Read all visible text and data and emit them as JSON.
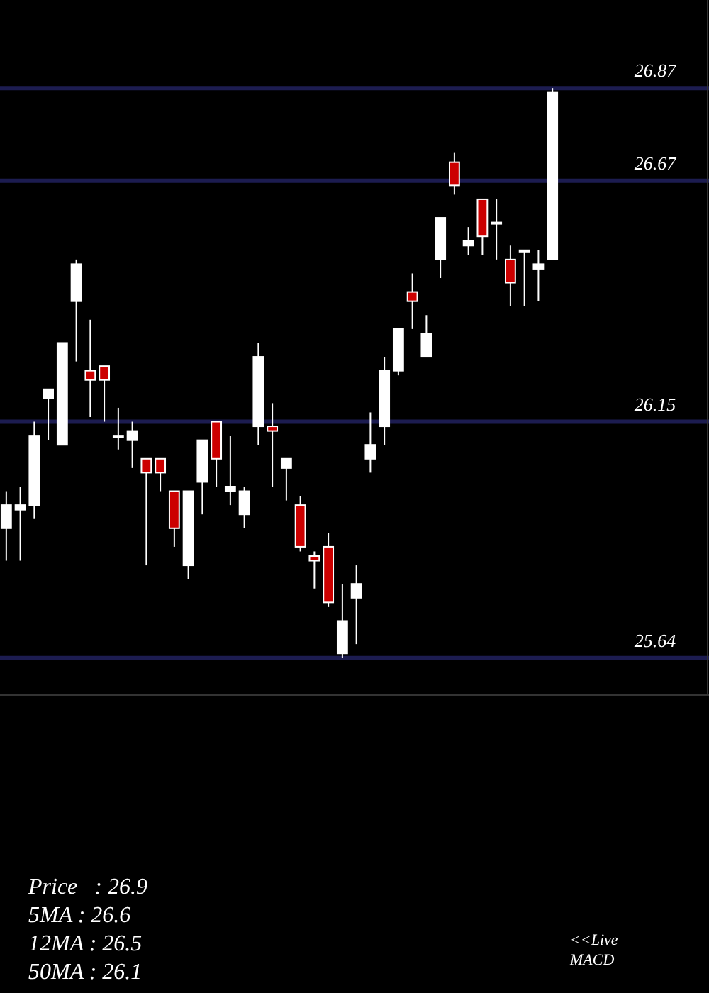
{
  "chart_data": {
    "type": "candlestick",
    "categories": [
      null,
      null,
      null,
      null,
      null,
      null,
      null,
      null,
      null,
      null,
      null,
      null,
      null,
      null,
      null,
      null,
      null,
      null,
      null,
      null,
      null,
      null,
      null,
      null,
      null,
      null,
      null,
      null,
      null,
      null,
      null,
      null,
      null,
      null,
      null,
      null,
      null,
      null,
      null,
      null
    ],
    "ohlc": [
      [
        25.92,
        26.0,
        25.85,
        25.97
      ],
      [
        25.96,
        26.01,
        25.85,
        25.97
      ],
      [
        25.97,
        26.15,
        25.94,
        26.12
      ],
      [
        26.2,
        26.22,
        26.11,
        26.22
      ],
      [
        26.1,
        26.32,
        26.1,
        26.32
      ],
      [
        26.41,
        26.5,
        26.28,
        26.49
      ],
      [
        26.26,
        26.37,
        26.16,
        26.24
      ],
      [
        26.27,
        26.27,
        26.15,
        26.24
      ],
      [
        26.12,
        26.18,
        26.09,
        26.12
      ],
      [
        26.11,
        26.15,
        26.05,
        26.13
      ],
      [
        26.07,
        26.07,
        25.84,
        26.04
      ],
      [
        26.07,
        26.07,
        26.0,
        26.04
      ],
      [
        26.0,
        26.0,
        25.88,
        25.92
      ],
      [
        25.84,
        26.0,
        25.81,
        26.0
      ],
      [
        26.02,
        26.11,
        25.95,
        26.11
      ],
      [
        26.15,
        26.15,
        26.01,
        26.07
      ],
      [
        26.0,
        26.12,
        25.97,
        26.01
      ],
      [
        25.95,
        26.01,
        25.92,
        26.0
      ],
      [
        26.14,
        26.32,
        26.1,
        26.29
      ],
      [
        26.14,
        26.19,
        26.01,
        26.13
      ],
      [
        26.05,
        26.07,
        25.98,
        26.07
      ],
      [
        25.97,
        25.99,
        25.87,
        25.88
      ],
      [
        25.86,
        25.87,
        25.79,
        25.85
      ],
      [
        25.88,
        25.91,
        25.75,
        25.76
      ],
      [
        25.65,
        25.8,
        25.64,
        25.72
      ],
      [
        25.77,
        25.84,
        25.67,
        25.8
      ],
      [
        26.07,
        26.17,
        26.04,
        26.1
      ],
      [
        26.14,
        26.29,
        26.1,
        26.26
      ],
      [
        26.26,
        26.35,
        26.25,
        26.35
      ],
      [
        26.43,
        26.47,
        26.35,
        26.41
      ],
      [
        26.29,
        26.38,
        26.29,
        26.34
      ],
      [
        26.5,
        26.59,
        26.46,
        26.59
      ],
      [
        26.71,
        26.73,
        26.64,
        26.66
      ],
      [
        26.53,
        26.57,
        26.51,
        26.54
      ],
      [
        26.63,
        26.63,
        26.51,
        26.55
      ],
      [
        26.58,
        26.63,
        26.5,
        26.58
      ],
      [
        26.5,
        26.53,
        26.4,
        26.45
      ],
      [
        26.52,
        26.52,
        26.4,
        26.52
      ],
      [
        26.48,
        26.52,
        26.41,
        26.49
      ],
      [
        26.5,
        26.87,
        26.5,
        26.86
      ]
    ],
    "colors": [
      "#ffffff",
      "#ffffff",
      "#ffffff",
      "#ffffff",
      "#ffffff",
      "#ffffff",
      "#cc0000",
      "#cc0000",
      "#ffffff",
      "#ffffff",
      "#cc0000",
      "#cc0000",
      "#cc0000",
      "#ffffff",
      "#ffffff",
      "#cc0000",
      "#ffffff",
      "#ffffff",
      "#ffffff",
      "#cc0000",
      "#ffffff",
      "#cc0000",
      "#cc0000",
      "#cc0000",
      "#ffffff",
      "#ffffff",
      "#ffffff",
      "#ffffff",
      "#ffffff",
      "#cc0000",
      "#ffffff",
      "#ffffff",
      "#cc0000",
      "#ffffff",
      "#cc0000",
      "#ffffff",
      "#cc0000",
      "#ffffff",
      "#ffffff",
      "#ffffff"
    ],
    "ylim": [
      25.56,
      27.06
    ],
    "yticks": [
      26.87,
      26.67,
      26.15,
      25.64
    ],
    "grid": "y",
    "annotations": [
      "Price   : 26.9",
      "5MA : 26.6",
      "12MA : 26.5",
      "50MA : 26.1",
      "<<Live MACD"
    ]
  }
}
